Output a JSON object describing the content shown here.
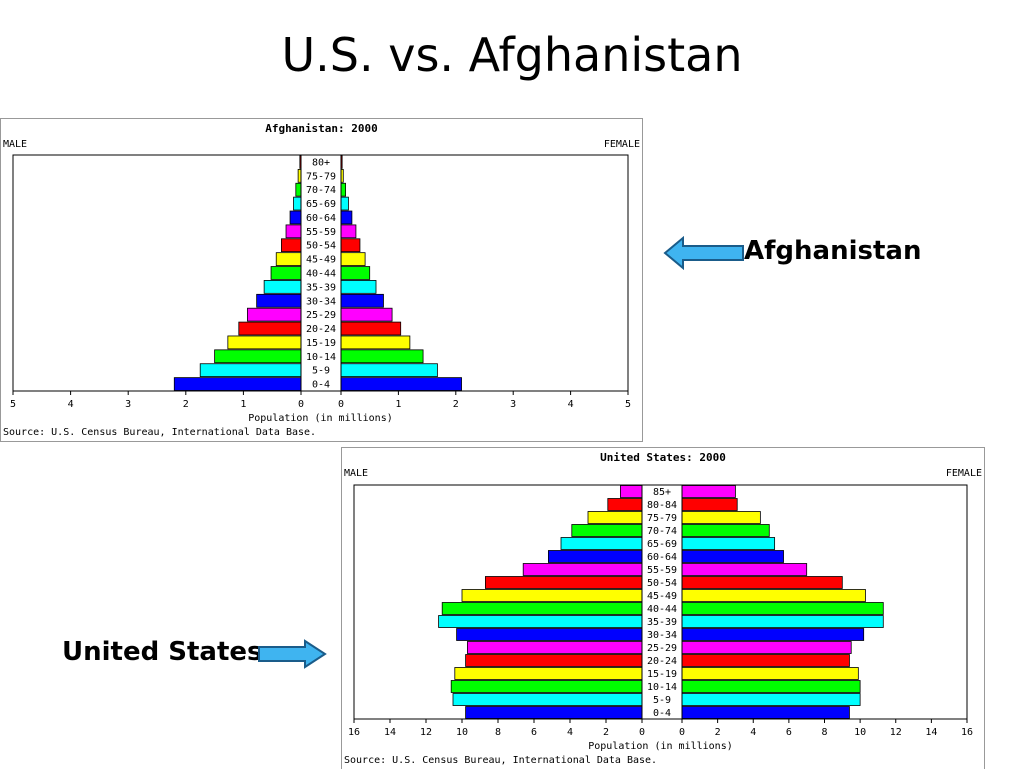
{
  "slide": {
    "title": "U.S. vs. Afghanistan"
  },
  "callouts": {
    "afghanistan": "Afghanistan",
    "united_states": "United States"
  },
  "colors": {
    "arrow_fill": "#3fb4f0",
    "arrow_stroke": "#1a5c8a"
  },
  "chart_data": [
    {
      "type": "bar",
      "orientation": "horizontal-pyramid",
      "title": "Afghanistan: 2000",
      "left_label": "MALE",
      "right_label": "FEMALE",
      "xlabel": "Population (in millions)",
      "source": "Source: U.S. Census Bureau, International Data Base.",
      "xlim": [
        0,
        5
      ],
      "xticks": [
        5,
        4,
        3,
        2,
        1,
        0
      ],
      "categories": [
        "0-4",
        "5-9",
        "10-14",
        "15-19",
        "20-24",
        "25-29",
        "30-34",
        "35-39",
        "40-44",
        "45-49",
        "50-54",
        "55-59",
        "60-64",
        "65-69",
        "70-74",
        "75-79",
        "80+"
      ],
      "colors": [
        "#0000ff",
        "#00ffff",
        "#00ff00",
        "#ffff00",
        "#ff0000",
        "#ff00ff",
        "#0000ff",
        "#00ffff",
        "#00ff00",
        "#ffff00",
        "#ff0000",
        "#ff00ff",
        "#0000ff",
        "#00ffff",
        "#00ff00",
        "#ffff00",
        "#ff0000"
      ],
      "series": [
        {
          "name": "MALE",
          "values": [
            2.2,
            1.75,
            1.5,
            1.27,
            1.08,
            0.93,
            0.77,
            0.64,
            0.52,
            0.43,
            0.34,
            0.26,
            0.19,
            0.13,
            0.09,
            0.05,
            0.02
          ]
        },
        {
          "name": "FEMALE",
          "values": [
            2.1,
            1.68,
            1.43,
            1.2,
            1.04,
            0.89,
            0.74,
            0.61,
            0.5,
            0.42,
            0.33,
            0.26,
            0.19,
            0.13,
            0.08,
            0.04,
            0.02
          ]
        }
      ]
    },
    {
      "type": "bar",
      "orientation": "horizontal-pyramid",
      "title": "United States: 2000",
      "left_label": "MALE",
      "right_label": "FEMALE",
      "xlabel": "Population (in millions)",
      "source": "Source: U.S. Census Bureau, International Data Base.",
      "xlim": [
        0,
        16
      ],
      "xticks": [
        16,
        14,
        12,
        10,
        8,
        6,
        4,
        2,
        0
      ],
      "categories": [
        "0-4",
        "5-9",
        "10-14",
        "15-19",
        "20-24",
        "25-29",
        "30-34",
        "35-39",
        "40-44",
        "45-49",
        "50-54",
        "55-59",
        "60-64",
        "65-69",
        "70-74",
        "75-79",
        "80-84",
        "85+"
      ],
      "colors": [
        "#0000ff",
        "#00ffff",
        "#00ff00",
        "#ffff00",
        "#ff0000",
        "#ff00ff",
        "#0000ff",
        "#00ffff",
        "#00ff00",
        "#ffff00",
        "#ff0000",
        "#ff00ff",
        "#0000ff",
        "#00ffff",
        "#00ff00",
        "#ffff00",
        "#ff0000",
        "#ff00ff"
      ],
      "series": [
        {
          "name": "MALE",
          "values": [
            9.8,
            10.5,
            10.6,
            10.4,
            9.8,
            9.7,
            10.3,
            11.3,
            11.1,
            10.0,
            8.7,
            6.6,
            5.2,
            4.5,
            3.9,
            3.0,
            1.9,
            1.2
          ]
        },
        {
          "name": "FEMALE",
          "values": [
            9.4,
            10.0,
            10.0,
            9.9,
            9.4,
            9.5,
            10.2,
            11.3,
            11.3,
            10.3,
            9.0,
            7.0,
            5.7,
            5.2,
            4.9,
            4.4,
            3.1,
            3.0
          ]
        }
      ]
    }
  ]
}
